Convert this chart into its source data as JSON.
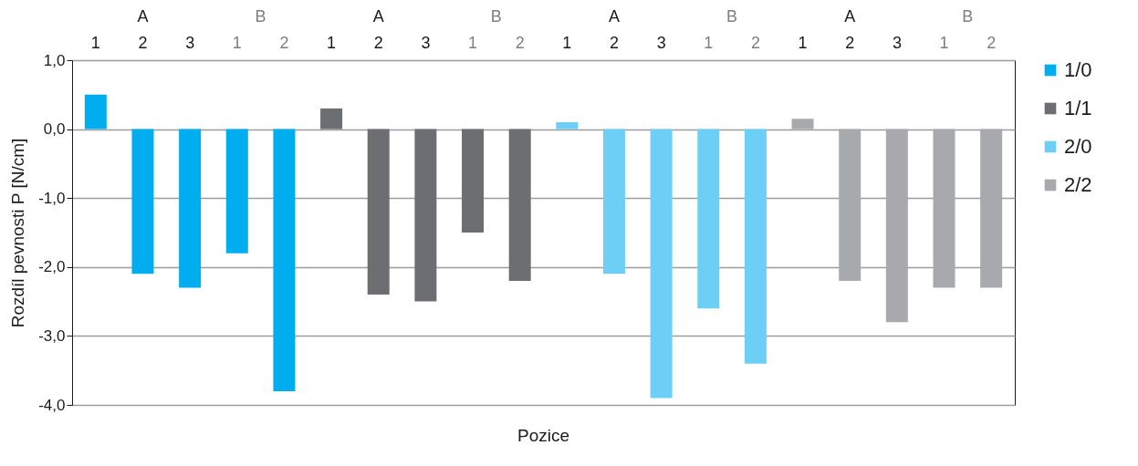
{
  "chart_data": {
    "type": "bar",
    "xlabel": "Pozice",
    "ylabel": "Rozdíl pevnosti P [N/cm]",
    "categories": [
      "1",
      "2",
      "3",
      "1",
      "2",
      "1",
      "2",
      "3",
      "1",
      "2",
      "1",
      "2",
      "3",
      "1",
      "2",
      "1",
      "2",
      "3",
      "1",
      "2"
    ],
    "annotations": [
      "A",
      "B",
      "A",
      "B",
      "A",
      "B",
      "A",
      "B"
    ],
    "series": [
      {
        "name": "1/0",
        "color": "#00adef",
        "values": [
          0.5,
          -2.1,
          -2.3,
          -1.8,
          -3.8,
          null,
          null,
          null,
          null,
          null,
          null,
          null,
          null,
          null,
          null,
          null,
          null,
          null,
          null,
          null
        ]
      },
      {
        "name": "1/1",
        "color": "#6d6e71",
        "values": [
          null,
          null,
          null,
          null,
          null,
          0.3,
          -2.4,
          -2.5,
          -1.5,
          -2.2,
          null,
          null,
          null,
          null,
          null,
          null,
          null,
          null,
          null,
          null
        ]
      },
      {
        "name": "2/0",
        "color": "#6dcff6",
        "values": [
          null,
          null,
          null,
          null,
          null,
          null,
          null,
          null,
          null,
          null,
          0.1,
          -2.1,
          -3.9,
          -2.6,
          -3.4,
          null,
          null,
          null,
          null,
          null
        ]
      },
      {
        "name": "2/2",
        "color": "#a7a9ac",
        "values": [
          null,
          null,
          null,
          null,
          null,
          null,
          null,
          null,
          null,
          null,
          null,
          null,
          null,
          null,
          null,
          0.15,
          -2.2,
          -2.8,
          -2.3,
          -2.3
        ]
      }
    ],
    "ylim": [
      -4,
      1
    ],
    "yticks": [
      {
        "value": 1,
        "label": "1,0"
      },
      {
        "value": 0,
        "label": "0,0"
      },
      {
        "value": -1,
        "label": "-1,0"
      },
      {
        "value": -2,
        "label": "-2,0"
      },
      {
        "value": -3,
        "label": "-3,0"
      },
      {
        "value": -4,
        "label": "-4,0"
      }
    ],
    "grid": "y",
    "legend": "right"
  }
}
